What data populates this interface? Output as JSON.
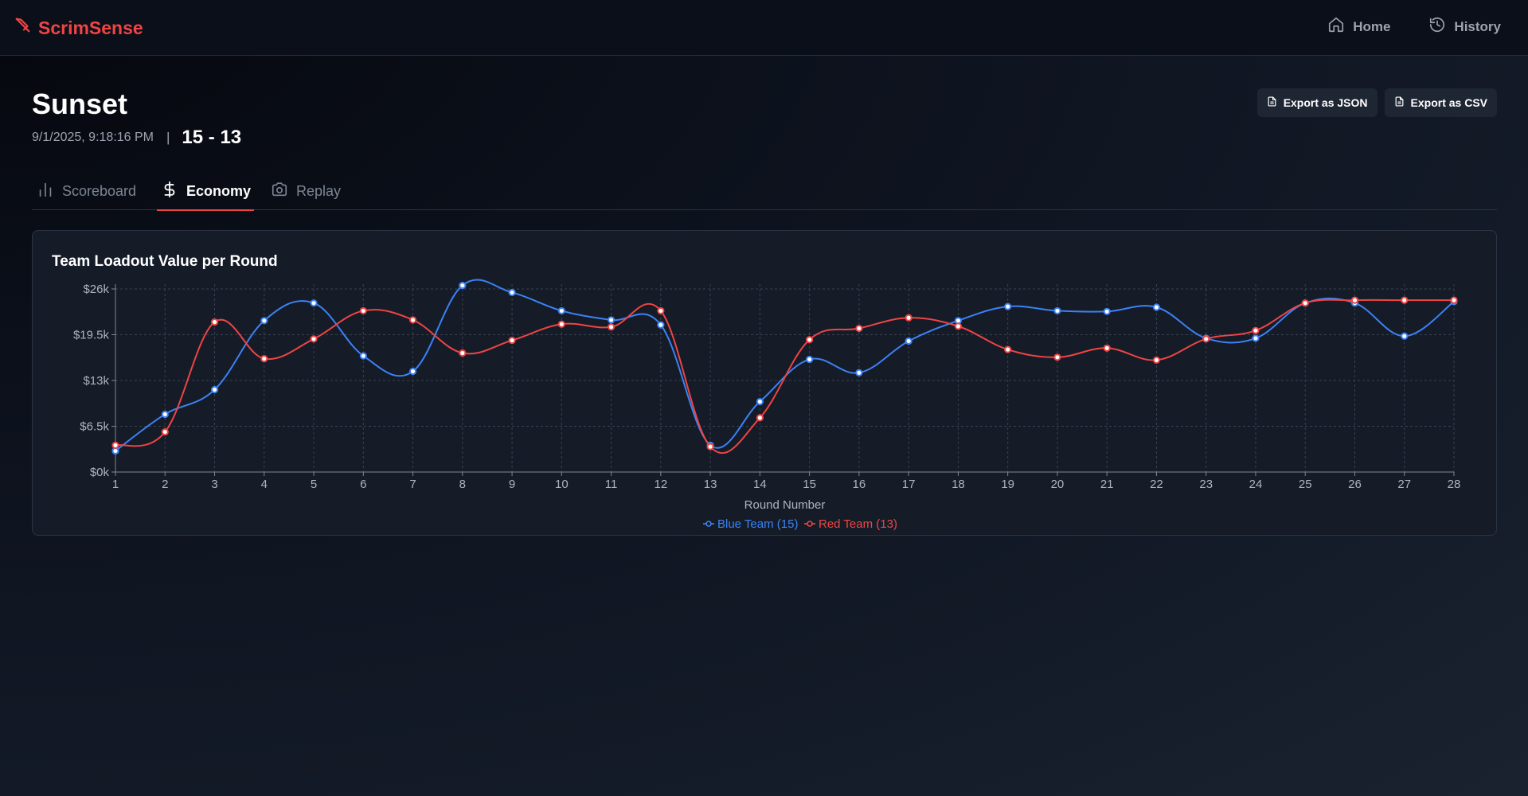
{
  "app": {
    "name": "ScrimSense",
    "nav": [
      {
        "label": "Home",
        "icon": "home-icon"
      },
      {
        "label": "History",
        "icon": "history-icon"
      }
    ]
  },
  "match": {
    "map": "Sunset",
    "datetime": "9/1/2025, 9:18:16 PM",
    "separator": "|",
    "score": "15 - 13"
  },
  "actions": {
    "export_json": "Export as JSON",
    "export_csv": "Export as CSV"
  },
  "tabs": [
    {
      "label": "Scoreboard",
      "icon": "bar-chart-icon",
      "active": false
    },
    {
      "label": "Economy",
      "icon": "dollar-icon",
      "active": true
    },
    {
      "label": "Replay",
      "icon": "camera-icon",
      "active": false
    }
  ],
  "colors": {
    "accent": "#ef4444",
    "blue": "#3b82f6",
    "red": "#ef4444"
  },
  "chart_data": {
    "type": "line",
    "title": "Team Loadout Value per Round",
    "xlabel": "Round Number",
    "ylabel": "",
    "x": [
      1,
      2,
      3,
      4,
      5,
      6,
      7,
      8,
      9,
      10,
      11,
      12,
      13,
      14,
      15,
      16,
      17,
      18,
      19,
      20,
      21,
      22,
      23,
      24,
      25,
      26,
      27,
      28
    ],
    "ylim": [
      0,
      26000
    ],
    "yticks": [
      0,
      6500,
      13000,
      19500,
      26000
    ],
    "ytick_labels": [
      "$0k",
      "$6.5k",
      "$13k",
      "$19.5k",
      "$26k"
    ],
    "grid": true,
    "legend_position": "bottom",
    "series": [
      {
        "name": "Blue Team (15)",
        "color": "#3b82f6",
        "values": [
          3000,
          8200,
          11700,
          21500,
          24000,
          16500,
          14300,
          26500,
          25500,
          22900,
          21600,
          20900,
          3800,
          10000,
          16000,
          14100,
          18600,
          21500,
          23500,
          22900,
          22800,
          23400,
          19000,
          19000,
          24000,
          24000,
          19300,
          24200
        ]
      },
      {
        "name": "Red Team (13)",
        "color": "#ef4444",
        "values": [
          3800,
          5700,
          21300,
          16100,
          18900,
          22900,
          21600,
          16900,
          18700,
          21000,
          20600,
          22900,
          3600,
          7700,
          18800,
          20400,
          21900,
          20700,
          17400,
          16300,
          17600,
          15900,
          18900,
          20100,
          24000,
          24400,
          24400,
          24400
        ]
      }
    ]
  }
}
